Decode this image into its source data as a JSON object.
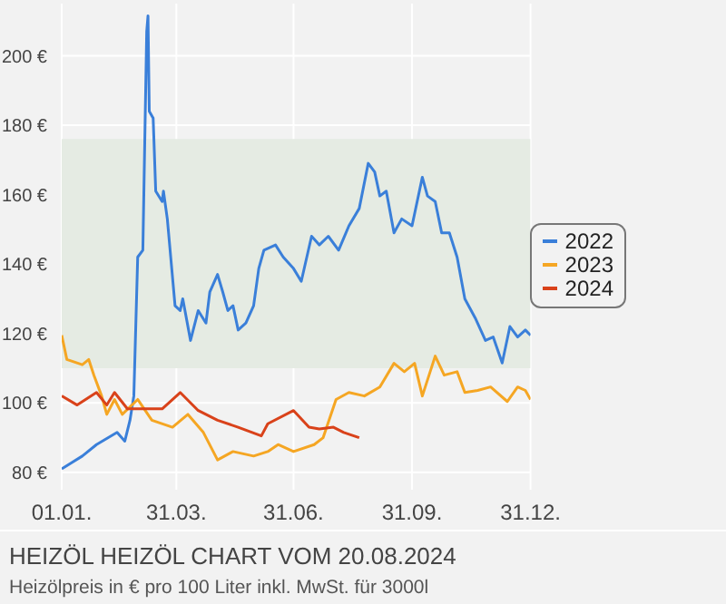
{
  "chart_data": {
    "type": "line",
    "title": "HEIZÖL HEIZÖL CHART VOM 20.08.2024",
    "subtitle": "Heizölpreis in € pro 100 Liter inkl. MwSt. für 3000l",
    "xlim": [
      "--01-01",
      "--12-31"
    ],
    "xticks": [
      {
        "value": "--01-01",
        "label": "01.01."
      },
      {
        "value": "--03-31",
        "label": "31.03."
      },
      {
        "value": "--06-30",
        "label": "31.06."
      },
      {
        "value": "--09-30",
        "label": "31.09."
      },
      {
        "value": "--12-31",
        "label": "31.12."
      }
    ],
    "ylim": [
      75,
      215
    ],
    "yticks": [
      {
        "value": 80,
        "label": "80 €"
      },
      {
        "value": 100,
        "label": "100 €"
      },
      {
        "value": 120,
        "label": "120 €"
      },
      {
        "value": 140,
        "label": "140 €"
      },
      {
        "value": 160,
        "label": "160 €"
      },
      {
        "value": 180,
        "label": "180 €"
      },
      {
        "value": 200,
        "label": "200 €"
      }
    ],
    "grid": true,
    "legend": "right",
    "bands": [
      {
        "axis": "y",
        "from": 110,
        "to": 176,
        "color": "#e5ebe3"
      }
    ],
    "series": [
      {
        "name": "2022",
        "color": "#3a7fd9",
        "x": [
          "--01-01",
          "--01-17",
          "--01-28",
          "--02-13",
          "--02-19",
          "--02-23",
          "--02-26",
          "--03-01",
          "--03-05",
          "--03-08",
          "--03-09",
          "--03-10",
          "--03-13",
          "--03-15",
          "--03-20",
          "--03-21",
          "--03-24",
          "--03-30",
          "--04-03",
          "--04-05",
          "--04-11",
          "--04-17",
          "--04-23",
          "--04-26",
          "--05-02",
          "--05-06",
          "--05-10",
          "--05-14",
          "--05-18",
          "--05-24",
          "--05-30",
          "--06-03",
          "--06-07",
          "--06-16",
          "--06-22",
          "--06-30",
          "--07-06",
          "--07-14",
          "--07-20",
          "--07-27",
          "--08-04",
          "--08-12",
          "--08-20",
          "--08-27",
          "--09-01",
          "--09-05",
          "--09-10",
          "--09-16",
          "--09-22",
          "--09-30",
          "--10-08",
          "--10-12",
          "--10-18",
          "--10-23",
          "--10-29",
          "--11-04",
          "--11-10",
          "--11-18",
          "--11-26",
          "--12-02",
          "--12-09",
          "--12-15",
          "--12-21",
          "--12-27",
          "--12-31"
        ],
        "values": [
          81,
          84.7,
          88,
          91.5,
          89,
          95,
          102,
          142,
          144,
          207,
          211.5,
          184,
          182,
          161,
          158,
          161,
          153,
          128,
          126.6,
          130,
          118,
          126.6,
          123,
          132,
          137,
          132,
          126.6,
          128,
          121,
          123,
          128,
          138.7,
          144,
          145.5,
          142,
          138.7,
          135,
          148,
          145.5,
          148,
          144,
          151,
          156,
          169,
          166.5,
          159.6,
          161,
          149,
          153,
          151,
          165,
          159.6,
          158,
          149,
          149,
          142,
          130,
          124.5,
          118,
          119,
          111.5,
          122,
          119,
          121,
          119.5
        ]
      },
      {
        "name": "2023",
        "color": "#f5a623",
        "x": [
          "--01-01",
          "--01-05",
          "--01-17",
          "--01-22",
          "--01-26",
          "--02-01",
          "--02-05",
          "--02-11",
          "--02-17",
          "--03-01",
          "--03-12",
          "--03-28",
          "--04-09",
          "--04-21",
          "--05-02",
          "--05-14",
          "--05-30",
          "--06-10",
          "--06-18",
          "--06-30",
          "--07-16",
          "--07-23",
          "--08-02",
          "--08-12",
          "--08-24",
          "--09-05",
          "--09-16",
          "--09-24",
          "--10-02",
          "--10-08",
          "--10-18",
          "--10-25",
          "--11-04",
          "--11-10",
          "--11-20",
          "--11-30",
          "--12-13",
          "--12-21",
          "--12-27",
          "--12-31"
        ],
        "values": [
          119.5,
          112.5,
          111,
          112.5,
          108,
          102,
          96.7,
          101,
          96.7,
          101,
          95,
          93,
          96.7,
          91.5,
          83.6,
          86,
          84.7,
          86,
          88,
          86,
          88,
          90,
          101,
          103,
          102,
          104.6,
          111.4,
          109,
          111.4,
          102,
          113.5,
          108,
          109,
          103,
          103.6,
          104.6,
          100.4,
          104.6,
          103.6,
          101
        ]
      },
      {
        "name": "2024",
        "color": "#d9421a",
        "x": [
          "--01-01",
          "--01-13",
          "--01-28",
          "--02-05",
          "--02-11",
          "--02-21",
          "--03-09",
          "--03-20",
          "--04-03",
          "--04-17",
          "--05-02",
          "--05-18",
          "--06-05",
          "--06-10",
          "--06-30",
          "--07-12",
          "--07-20",
          "--07-31",
          "--08-08",
          "--08-20"
        ],
        "values": [
          102,
          99.4,
          103,
          99.4,
          103,
          98.3,
          98.3,
          98.3,
          103,
          97.8,
          95,
          93,
          90.5,
          94,
          97.8,
          93,
          92.5,
          93,
          91.5,
          90
        ]
      }
    ]
  }
}
